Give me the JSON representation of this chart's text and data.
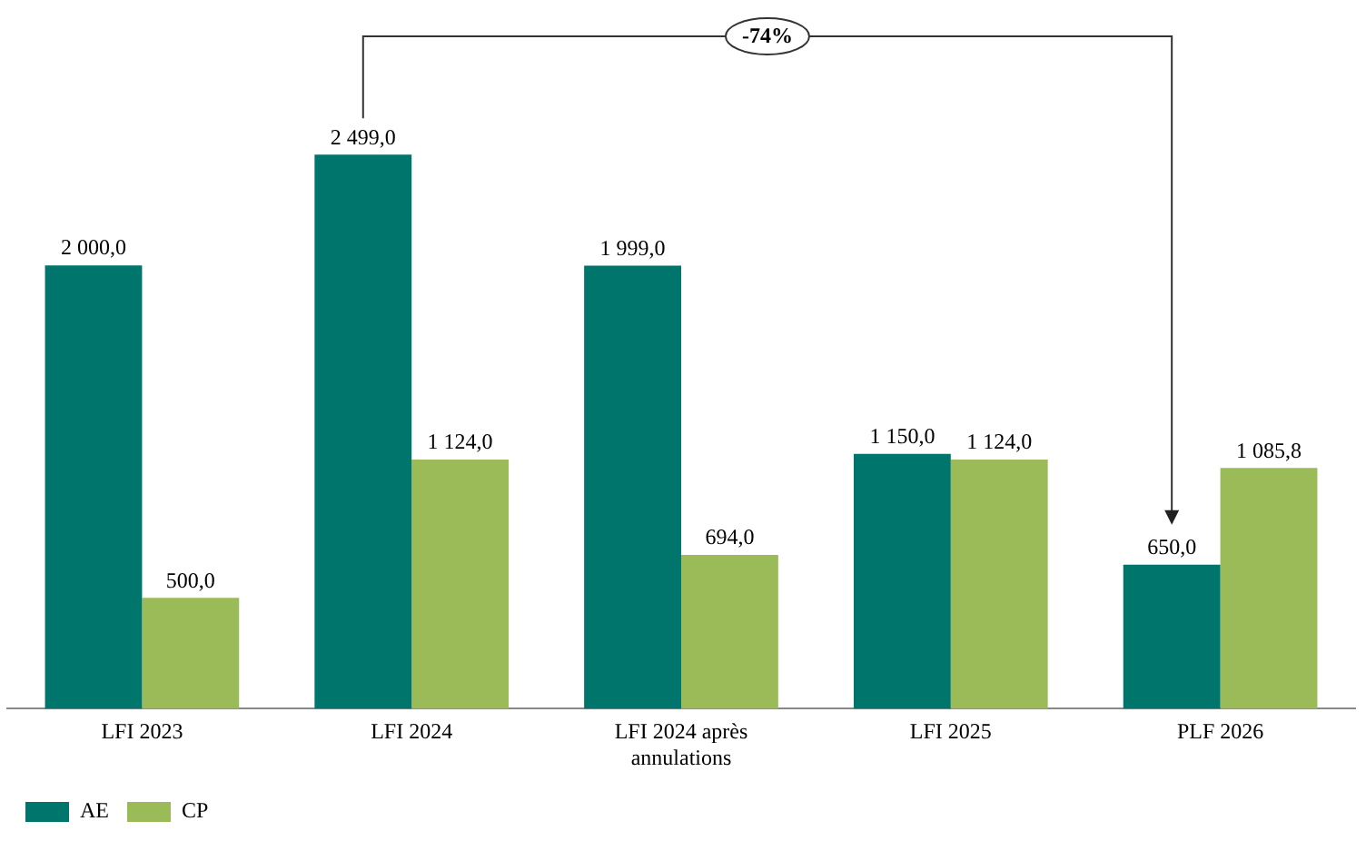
{
  "chart_data": {
    "type": "bar",
    "categories": [
      "LFI 2023",
      "LFI 2024",
      "LFI 2024 après annulations",
      "LFI 2025",
      "PLF 2026"
    ],
    "series": [
      {
        "name": "AE",
        "color": "#00756b",
        "values": [
          2000,
          2499,
          1999,
          1150,
          650
        ],
        "value_labels": [
          "2 000,0",
          "2 499,0",
          "1 999,0",
          "1 150,0",
          "650,0"
        ]
      },
      {
        "name": "CP",
        "color": "#9bbb59",
        "values": [
          500,
          1124,
          694,
          1124,
          1085.8
        ],
        "value_labels": [
          "500,0",
          "1 124,0",
          "694,0",
          "1 124,0",
          "1 085,8"
        ]
      }
    ],
    "annotations": [
      "-74%"
    ],
    "legend": "bottom left"
  }
}
